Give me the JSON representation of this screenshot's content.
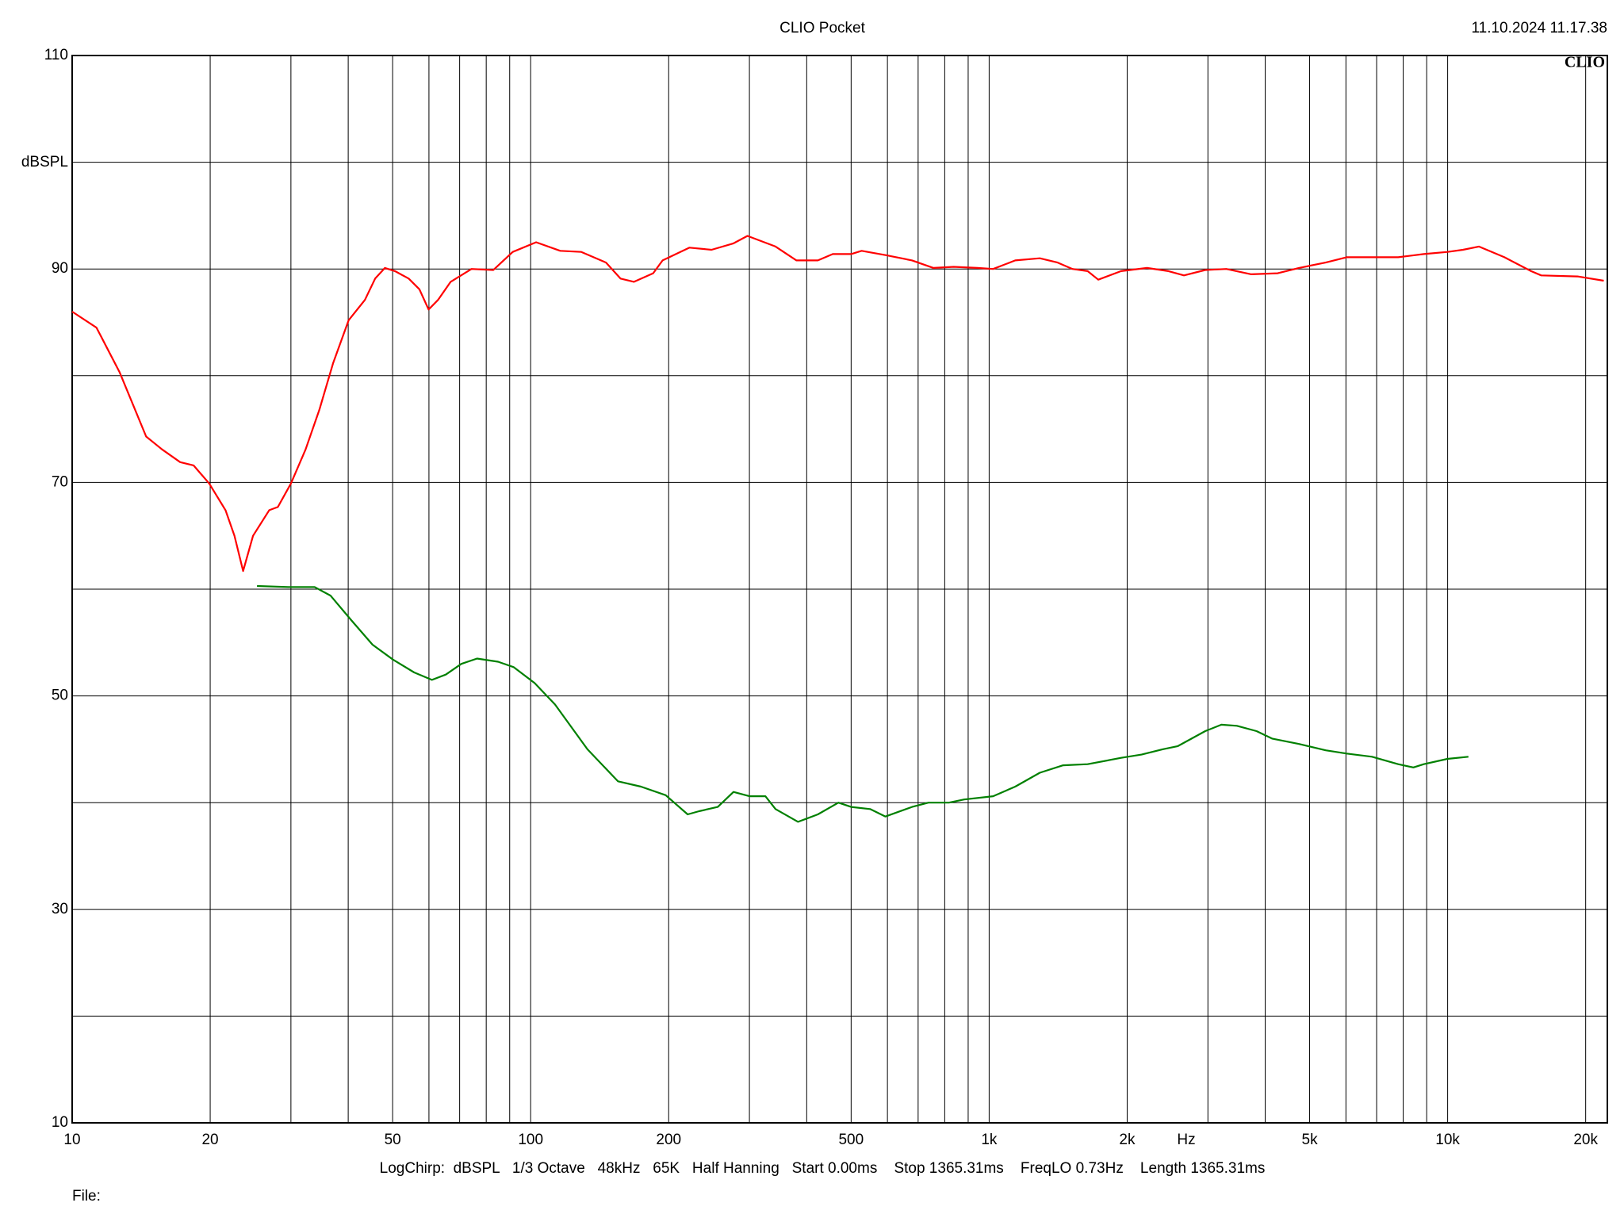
{
  "chart_data": {
    "type": "line",
    "title": "CLIO Pocket",
    "timestamp": "11.10.2024 11.17.38",
    "logo": "CLIO",
    "y_label": "dBSPL",
    "x_label": "Hz",
    "footer": "LogChirp:  dBSPL   1/3 Octave   48kHz   65K   Half Hanning   Start 0.00ms    Stop 1365.31ms    FreqLO 0.73Hz    Length 1365.31ms",
    "file_label": "File:",
    "x_log": true,
    "grid": true,
    "xlim": [
      10,
      22300
    ],
    "ylim": [
      10,
      110
    ],
    "xticks": [
      10,
      20,
      50,
      100,
      200,
      500,
      {
        "value": 1000,
        "label": "1k"
      },
      {
        "value": 2000,
        "label": "2k"
      },
      {
        "value": 5000,
        "label": "5k"
      },
      {
        "value": 10000,
        "label": "10k"
      },
      {
        "value": 20000,
        "label": "20k"
      }
    ],
    "minor_xticks": [
      30,
      40,
      60,
      70,
      80,
      90,
      300,
      400,
      600,
      700,
      800,
      900,
      3000,
      4000,
      6000,
      7000,
      8000,
      9000
    ],
    "yticks": [
      10,
      30,
      50,
      70,
      90,
      110
    ],
    "minor_yticks": [
      20,
      40,
      60,
      80,
      100
    ],
    "series": [
      {
        "color": "#ff0000",
        "x": [
          10,
          11.3,
          12.7,
          14.5,
          15.7,
          17.2,
          18.4,
          19.9,
          21.6,
          22.6,
          23.6,
          24.8,
          26.9,
          28.1,
          30.0,
          32.3,
          34.6,
          37.1,
          40.1,
          43.5,
          45.8,
          48.1,
          50.6,
          54.2,
          57.2,
          59.9,
          62.8,
          66.9,
          74.3,
          82.9,
          91.4,
          102.8,
          116,
          129,
          146,
          157,
          168,
          185,
          194,
          222,
          248,
          277,
          297,
          342,
          380,
          423,
          456,
          500,
          527,
          594,
          679,
          756,
          837,
          943,
          1020,
          1140,
          1290,
          1410,
          1520,
          1640,
          1730,
          1940,
          2210,
          2460,
          2660,
          2960,
          3290,
          3730,
          4260,
          4740,
          5420,
          6020,
          6840,
          7800,
          8870,
          9990,
          10800,
          11700,
          13300,
          15200,
          16000,
          19200,
          21900
        ],
        "values": [
          86.0,
          84.5,
          80.3,
          74.3,
          73.1,
          71.9,
          71.6,
          69.9,
          67.4,
          65.0,
          61.7,
          65.0,
          67.4,
          67.7,
          69.9,
          73.1,
          76.8,
          81.2,
          85.2,
          87.1,
          89.1,
          90.1,
          89.8,
          89.1,
          88.1,
          86.2,
          87.1,
          88.8,
          90.0,
          89.9,
          91.6,
          92.5,
          91.7,
          91.6,
          90.6,
          89.1,
          88.8,
          89.6,
          90.8,
          92.0,
          91.8,
          92.4,
          93.1,
          92.1,
          90.8,
          90.8,
          91.4,
          91.4,
          91.7,
          91.3,
          90.8,
          90.1,
          90.2,
          90.1,
          90.0,
          90.8,
          91.0,
          90.6,
          90.0,
          89.8,
          89.0,
          89.8,
          90.1,
          89.8,
          89.4,
          89.9,
          90.0,
          89.5,
          89.6,
          90.1,
          90.6,
          91.1,
          91.1,
          91.1,
          91.4,
          91.6,
          91.8,
          92.1,
          91.1,
          89.8,
          89.4,
          89.3,
          88.9
        ]
      },
      {
        "color": "#008000",
        "x": [
          25.3,
          29.6,
          33.8,
          36.6,
          40.6,
          45.2,
          50.1,
          55.7,
          60.9,
          65.3,
          70.6,
          76.4,
          84.9,
          91.8,
          102,
          113,
          133,
          155,
          174,
          197,
          220,
          233,
          256,
          277,
          300,
          325,
          342,
          383,
          423,
          469,
          500,
          550,
          594,
          679,
          737,
          817,
          882,
          1020,
          1140,
          1290,
          1450,
          1640,
          1940,
          2150,
          2390,
          2580,
          2960,
          3210,
          3470,
          3830,
          4140,
          4740,
          5420,
          6020,
          6840,
          7800,
          8420,
          8870,
          9990,
          11100
        ],
        "values": [
          60.3,
          60.2,
          60.2,
          59.4,
          57.1,
          54.8,
          53.4,
          52.2,
          51.5,
          52.0,
          53.0,
          53.5,
          53.2,
          52.7,
          51.2,
          49.2,
          45.0,
          42.0,
          41.5,
          40.7,
          38.9,
          39.2,
          39.6,
          41.0,
          40.6,
          40.6,
          39.4,
          38.2,
          38.9,
          40.0,
          39.6,
          39.4,
          38.7,
          39.6,
          40.0,
          40.0,
          40.3,
          40.6,
          41.5,
          42.8,
          43.5,
          43.6,
          44.2,
          44.5,
          45.0,
          45.3,
          46.7,
          47.3,
          47.2,
          46.7,
          46.0,
          45.5,
          44.9,
          44.6,
          44.3,
          43.6,
          43.3,
          43.6,
          44.1,
          44.3
        ]
      }
    ]
  }
}
